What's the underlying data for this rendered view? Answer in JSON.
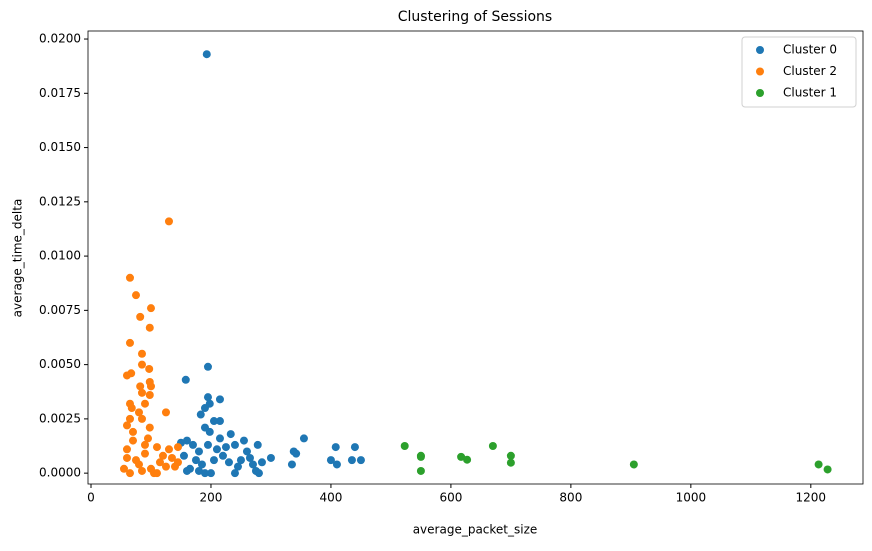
{
  "chart_data": {
    "type": "scatter",
    "title": "Clustering of Sessions",
    "x_label": "average_packet_size",
    "y_label": "average_time_delta",
    "xlim": [
      -5,
      1287
    ],
    "ylim": [
      -0.0005,
      0.02037
    ],
    "xticks": [
      0,
      200,
      400,
      600,
      800,
      1000,
      1200
    ],
    "yticks": [
      {
        "value": 0,
        "label": "0.0000"
      },
      {
        "value": 0.0025,
        "label": "0.0025"
      },
      {
        "value": 0.005,
        "label": "0.0050"
      },
      {
        "value": 0.0075,
        "label": "0.0075"
      },
      {
        "value": 0.01,
        "label": "0.0100"
      },
      {
        "value": 0.0125,
        "label": "0.0125"
      },
      {
        "value": 0.015,
        "label": "0.0150"
      },
      {
        "value": 0.0175,
        "label": "0.0175"
      },
      {
        "value": 0.02,
        "label": "0.0200"
      }
    ],
    "legend": "upper right",
    "series": [
      {
        "name": "Cluster 0",
        "color": "#1f77b4",
        "x": [
          193,
          195,
          158,
          195,
          215,
          198,
          190,
          183,
          215,
          205,
          190,
          233,
          198,
          355,
          240,
          255,
          278,
          300,
          338,
          342,
          335,
          400,
          408,
          410,
          435,
          440,
          450,
          215,
          160,
          150,
          170,
          175,
          180,
          165,
          200,
          220,
          230,
          245,
          260,
          270,
          280,
          275,
          185,
          210,
          225,
          250,
          265,
          155,
          190,
          205,
          240,
          285,
          195,
          160,
          180
        ],
        "values": [
          0.0193,
          0.0049,
          0.0043,
          0.0035,
          0.0034,
          0.0032,
          0.003,
          0.0027,
          0.0024,
          0.0024,
          0.0021,
          0.0018,
          0.0019,
          0.0016,
          0.0013,
          0.0015,
          0.0013,
          0.0007,
          0.001,
          0.0009,
          0.0004,
          0.0006,
          0.0012,
          0.0004,
          0.0006,
          0.0012,
          0.0006,
          0.0016,
          0.0015,
          0.0014,
          0.0013,
          0.0006,
          0.001,
          0.0002,
          0,
          0.0008,
          0.0005,
          0.0003,
          0.001,
          0.0004,
          0,
          0.0001,
          0.0004,
          0.0011,
          0.0012,
          0.0006,
          0.0007,
          0.0008,
          0,
          0.0006,
          0,
          0.0005,
          0.0013,
          0.0001,
          0.0001
        ]
      },
      {
        "name": "Cluster 2",
        "color": "#ff7f0e",
        "x": [
          130,
          65,
          75,
          100,
          82,
          98,
          65,
          85,
          85,
          97,
          67,
          60,
          98,
          100,
          82,
          85,
          98,
          90,
          65,
          68,
          80,
          125,
          65,
          85,
          60,
          98,
          70,
          110,
          130,
          145,
          120,
          60,
          75,
          90,
          100,
          55,
          65,
          80,
          115,
          140,
          70,
          95,
          60,
          135,
          105,
          85,
          125,
          90,
          110,
          145
        ],
        "values": [
          0.0116,
          0.009,
          0.0082,
          0.0076,
          0.0072,
          0.0067,
          0.006,
          0.0055,
          0.005,
          0.0048,
          0.0046,
          0.0045,
          0.0042,
          0.004,
          0.004,
          0.0037,
          0.0036,
          0.0032,
          0.0032,
          0.003,
          0.0028,
          0.0028,
          0.0025,
          0.0025,
          0.0022,
          0.0021,
          0.0019,
          0.0012,
          0.0011,
          0.0012,
          0.0008,
          0.0011,
          0.0006,
          0.0009,
          0.0002,
          0.0002,
          0,
          0.0004,
          0.0005,
          0.0003,
          0.0015,
          0.0016,
          0.0007,
          0.0007,
          0,
          0.0001,
          0.0003,
          0.0013,
          0,
          0.0005
        ]
      },
      {
        "name": "Cluster 1",
        "color": "#2ca02c",
        "x": [
          523,
          550,
          550,
          550,
          617,
          627,
          670,
          700,
          700,
          905,
          1213,
          1228
        ],
        "values": [
          0.00125,
          0.0008,
          0.00075,
          0.0001,
          0.00075,
          0.00062,
          0.00125,
          0.0008,
          0.00048,
          0.0004,
          0.0004,
          0.00017
        ]
      }
    ]
  }
}
